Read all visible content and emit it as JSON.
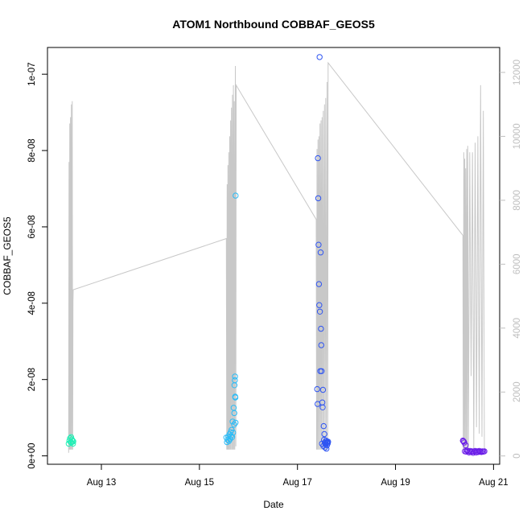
{
  "chart_data": {
    "type": "scatter",
    "title": "ATOM1 Northbound COBBAF_GEOS5",
    "xlabel": "Date",
    "ylabel": "COBBAF_GEOS5",
    "xlim": [
      "2012-08-11T21:36",
      "2012-08-21T03:00"
    ],
    "ylim": [
      -2.2e-09,
      1.07e-07
    ],
    "y2lim": [
      -260,
      12780
    ],
    "x_ticks": [
      {
        "label": "Aug 13",
        "date": "2012-08-13"
      },
      {
        "label": "Aug 15",
        "date": "2012-08-15"
      },
      {
        "label": "Aug 17",
        "date": "2012-08-17"
      },
      {
        "label": "Aug 19",
        "date": "2012-08-19"
      },
      {
        "label": "Aug 21",
        "date": "2012-08-21"
      }
    ],
    "y_ticks": [
      {
        "label": "0e+00",
        "value": 0
      },
      {
        "label": "2e-08",
        "value": 2e-08
      },
      {
        "label": "4e-08",
        "value": 4e-08
      },
      {
        "label": "6e-08",
        "value": 6e-08
      },
      {
        "label": "8e-08",
        "value": 8e-08
      },
      {
        "label": "1e-07",
        "value": 1e-07
      }
    ],
    "y2_ticks": [
      {
        "label": "0",
        "value": 0
      },
      {
        "label": "2000",
        "value": 2000
      },
      {
        "label": "4000",
        "value": 4000
      },
      {
        "label": "6000",
        "value": 6000
      },
      {
        "label": "8000",
        "value": 8000
      },
      {
        "label": "10000",
        "value": 10000
      },
      {
        "label": "12000",
        "value": 12000
      }
    ],
    "secondary_series_color": "#c8c8c8",
    "secondary_series": [
      [
        "2012-08-12T07:58",
        100
      ],
      [
        "2012-08-12T08:10",
        9200
      ],
      [
        "2012-08-12T08:20",
        200
      ],
      [
        "2012-08-12T08:31",
        10400
      ],
      [
        "2012-08-12T08:41",
        200
      ],
      [
        "2012-08-12T08:53",
        10600
      ],
      [
        "2012-08-12T09:05",
        200
      ],
      [
        "2012-08-12T09:17",
        11000
      ],
      [
        "2012-08-12T09:29",
        200
      ],
      [
        "2012-08-12T09:43",
        11100
      ],
      [
        "2012-08-12T09:55",
        200
      ],
      [
        "2012-08-12T10:05",
        4800
      ],
      [
        "2012-08-12T10:12",
        5200
      ],
      [
        "2012-08-15T13:10",
        6800
      ],
      [
        "2012-08-15T13:22",
        200
      ],
      [
        "2012-08-15T13:34",
        8500
      ],
      [
        "2012-08-15T13:46",
        200
      ],
      [
        "2012-08-15T13:58",
        9100
      ],
      [
        "2012-08-15T14:10",
        200
      ],
      [
        "2012-08-15T14:22",
        9500
      ],
      [
        "2012-08-15T14:36",
        200
      ],
      [
        "2012-08-15T14:50",
        10000
      ],
      [
        "2012-08-15T15:02",
        200
      ],
      [
        "2012-08-15T15:15",
        10500
      ],
      [
        "2012-08-15T15:28",
        200
      ],
      [
        "2012-08-15T15:41",
        10900
      ],
      [
        "2012-08-15T15:55",
        200
      ],
      [
        "2012-08-15T16:10",
        11300
      ],
      [
        "2012-08-15T16:24",
        200
      ],
      [
        "2012-08-15T16:38",
        11600
      ],
      [
        "2012-08-15T16:52",
        200
      ],
      [
        "2012-08-15T17:05",
        11100
      ],
      [
        "2012-08-15T17:18",
        200
      ],
      [
        "2012-08-15T17:35",
        12200
      ],
      [
        "2012-08-15T17:50",
        300
      ],
      [
        "2012-08-15T18:00",
        11600
      ],
      [
        "2012-08-17T09:10",
        7400
      ],
      [
        "2012-08-17T09:22",
        200
      ],
      [
        "2012-08-17T09:35",
        9600
      ],
      [
        "2012-08-17T09:48",
        200
      ],
      [
        "2012-08-17T10:02",
        9900
      ],
      [
        "2012-08-17T10:16",
        200
      ],
      [
        "2012-08-17T10:31",
        10000
      ],
      [
        "2012-08-17T10:46",
        200
      ],
      [
        "2012-08-17T11:01",
        10400
      ],
      [
        "2012-08-17T11:16",
        200
      ],
      [
        "2012-08-17T11:32",
        10500
      ],
      [
        "2012-08-17T11:48",
        200
      ],
      [
        "2012-08-17T12:04",
        10600
      ],
      [
        "2012-08-17T12:20",
        200
      ],
      [
        "2012-08-17T12:38",
        10800
      ],
      [
        "2012-08-17T12:56",
        200
      ],
      [
        "2012-08-17T13:14",
        11000
      ],
      [
        "2012-08-17T13:32",
        200
      ],
      [
        "2012-08-17T13:50",
        11200
      ],
      [
        "2012-08-17T14:08",
        200
      ],
      [
        "2012-08-17T14:30",
        11700
      ],
      [
        "2012-08-17T14:48",
        300
      ],
      [
        "2012-08-17T15:00",
        12300
      ],
      [
        "2012-08-20T09:00",
        6900
      ],
      [
        "2012-08-20T09:12",
        200
      ],
      [
        "2012-08-20T09:25",
        9500
      ],
      [
        "2012-08-20T09:38",
        200
      ],
      [
        "2012-08-20T09:52",
        9300
      ],
      [
        "2012-08-20T10:06",
        200
      ],
      [
        "2012-08-20T10:20",
        9000
      ],
      [
        "2012-08-20T10:35",
        300
      ],
      [
        "2012-08-20T10:50",
        9600
      ],
      [
        "2012-08-20T11:05",
        200
      ],
      [
        "2012-08-20T11:22",
        9700
      ],
      [
        "2012-08-20T11:40",
        200
      ],
      [
        "2012-08-20T12:20",
        9500
      ],
      [
        "2012-08-20T13:00",
        2500
      ],
      [
        "2012-08-20T13:40",
        9500
      ],
      [
        "2012-08-20T14:20",
        200
      ],
      [
        "2012-08-20T15:00",
        9800
      ],
      [
        "2012-08-20T15:40",
        900
      ],
      [
        "2012-08-20T16:20",
        10000
      ],
      [
        "2012-08-20T17:00",
        700
      ],
      [
        "2012-08-20T17:40",
        11600
      ],
      [
        "2012-08-20T18:20",
        600
      ],
      [
        "2012-08-20T19:00",
        10800
      ],
      [
        "2012-08-20T19:30",
        200
      ]
    ],
    "point_groups": [
      {
        "color": "#21f0b6",
        "points": [
          [
            "2012-08-12T08:00",
            3.2e-09
          ],
          [
            "2012-08-12T08:20",
            4e-09
          ],
          [
            "2012-08-12T08:40",
            4.6e-09
          ],
          [
            "2012-08-12T09:00",
            3.6e-09
          ],
          [
            "2012-08-12T09:10",
            4.9e-09
          ],
          [
            "2012-08-12T09:20",
            3.5e-09
          ],
          [
            "2012-08-12T09:35",
            4.3e-09
          ],
          [
            "2012-08-12T09:50",
            3.9e-09
          ],
          [
            "2012-08-12T10:05",
            3.2e-09
          ],
          [
            "2012-08-12T10:15",
            3.8e-09
          ]
        ]
      },
      {
        "color": "#2bbcf7",
        "points": [
          [
            "2012-08-15T13:10",
            4.8e-09
          ],
          [
            "2012-08-15T13:30",
            3.6e-09
          ],
          [
            "2012-08-15T13:50",
            4.2e-09
          ],
          [
            "2012-08-15T14:10",
            5e-09
          ],
          [
            "2012-08-15T14:25",
            3.9e-09
          ],
          [
            "2012-08-15T14:40",
            5.6e-09
          ],
          [
            "2012-08-15T15:00",
            4.4e-09
          ],
          [
            "2012-08-15T15:15",
            6.2e-09
          ],
          [
            "2012-08-15T15:30",
            5.2e-09
          ],
          [
            "2012-08-15T15:45",
            6.8e-09
          ],
          [
            "2012-08-15T16:00",
            4.9e-09
          ],
          [
            "2012-08-15T16:15",
            9e-09
          ],
          [
            "2012-08-15T16:30",
            6.1e-09
          ],
          [
            "2012-08-15T16:45",
            1.26e-08
          ],
          [
            "2012-08-15T17:00",
            8.2e-09
          ],
          [
            "2012-08-15T17:05",
            1.12e-08
          ],
          [
            "2012-08-15T17:10",
            1.85e-08
          ],
          [
            "2012-08-15T17:20",
            1.98e-08
          ],
          [
            "2012-08-15T17:25",
            2.08e-08
          ],
          [
            "2012-08-15T17:30",
            1.55e-08
          ],
          [
            "2012-08-15T17:35",
            1.53e-08
          ],
          [
            "2012-08-15T17:40",
            8.7e-09
          ],
          [
            "2012-08-15T17:42",
            6.82e-08
          ]
        ]
      },
      {
        "color": "#2f55f2",
        "points": [
          [
            "2012-08-17T09:40",
            1.75e-08
          ],
          [
            "2012-08-17T09:50",
            1.36e-08
          ],
          [
            "2012-08-17T10:00",
            7.8e-08
          ],
          [
            "2012-08-17T10:10",
            6.75e-08
          ],
          [
            "2012-08-17T10:20",
            5.53e-08
          ],
          [
            "2012-08-17T10:30",
            4.5e-08
          ],
          [
            "2012-08-17T10:40",
            3.95e-08
          ],
          [
            "2012-08-17T10:50",
            1.045e-07
          ],
          [
            "2012-08-17T11:00",
            3.78e-08
          ],
          [
            "2012-08-17T11:10",
            2.22e-08
          ],
          [
            "2012-08-17T11:20",
            5.33e-08
          ],
          [
            "2012-08-17T11:30",
            3.33e-08
          ],
          [
            "2012-08-17T11:40",
            2.9e-08
          ],
          [
            "2012-08-17T11:50",
            2.22e-08
          ],
          [
            "2012-08-17T12:00",
            3.2e-09
          ],
          [
            "2012-08-17T12:10",
            1.4e-08
          ],
          [
            "2012-08-17T12:20",
            1.27e-08
          ],
          [
            "2012-08-17T12:30",
            1.73e-08
          ],
          [
            "2012-08-17T12:40",
            2.6e-09
          ],
          [
            "2012-08-17T12:50",
            7.8e-09
          ],
          [
            "2012-08-17T13:00",
            4.2e-09
          ],
          [
            "2012-08-17T13:10",
            5.7e-09
          ],
          [
            "2012-08-17T13:20",
            3.4e-09
          ],
          [
            "2012-08-17T13:30",
            2.2e-09
          ],
          [
            "2012-08-17T13:40",
            3.6e-09
          ],
          [
            "2012-08-17T13:50",
            3e-09
          ],
          [
            "2012-08-17T14:00",
            4e-09
          ],
          [
            "2012-08-17T14:10",
            1.9e-09
          ],
          [
            "2012-08-17T14:20",
            3.5e-09
          ],
          [
            "2012-08-17T14:30",
            2.8e-09
          ],
          [
            "2012-08-17T14:40",
            3.6e-09
          ],
          [
            "2012-08-17T14:50",
            3.3e-09
          ],
          [
            "2012-08-17T15:00",
            3.7e-09
          ]
        ]
      },
      {
        "color": "#6a1de8",
        "points": [
          [
            "2012-08-20T09:00",
            4e-09
          ],
          [
            "2012-08-20T09:20",
            3.8e-09
          ],
          [
            "2012-08-20T09:40",
            3.5e-09
          ],
          [
            "2012-08-20T10:00",
            1.2e-09
          ],
          [
            "2012-08-20T10:20",
            2.8e-09
          ],
          [
            "2012-08-20T10:40",
            1.1e-09
          ],
          [
            "2012-08-20T11:00",
            1.4e-09
          ],
          [
            "2012-08-20T11:30",
            1.2e-09
          ],
          [
            "2012-08-20T12:00",
            9e-10
          ],
          [
            "2012-08-20T12:30",
            1.3e-09
          ],
          [
            "2012-08-20T13:00",
            1e-09
          ],
          [
            "2012-08-20T13:30",
            1.2e-09
          ],
          [
            "2012-08-20T14:00",
            8e-10
          ],
          [
            "2012-08-20T14:30",
            1.1e-09
          ],
          [
            "2012-08-20T15:00",
            1.3e-09
          ],
          [
            "2012-08-20T15:30",
            9e-10
          ],
          [
            "2012-08-20T16:00",
            1.2e-09
          ],
          [
            "2012-08-20T16:30",
            1e-09
          ],
          [
            "2012-08-20T17:00",
            1.3e-09
          ],
          [
            "2012-08-20T17:30",
            1.1e-09
          ],
          [
            "2012-08-20T18:00",
            1e-09
          ],
          [
            "2012-08-20T18:30",
            1.2e-09
          ],
          [
            "2012-08-20T19:00",
            1.1e-09
          ],
          [
            "2012-08-20T19:30",
            1.2e-09
          ]
        ]
      }
    ]
  }
}
